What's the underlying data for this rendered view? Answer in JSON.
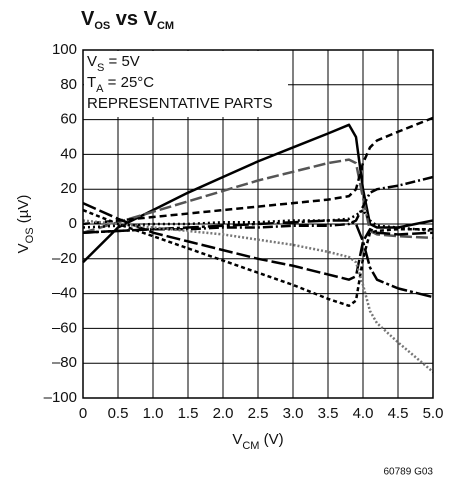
{
  "chart_data": {
    "type": "line",
    "title": [
      "V",
      "OS",
      " vs V",
      "CM"
    ],
    "y_label": [
      "V",
      "OS",
      " (µV)"
    ],
    "x_label": [
      "V",
      "CM",
      " (V)"
    ],
    "annotations": [
      [
        "V",
        "S",
        " = 5V"
      ],
      [
        "T",
        "A",
        " = 25°C"
      ],
      [
        "REPRESENTATIVE PARTS"
      ]
    ],
    "footnote": "60789 G03",
    "grid": true,
    "xlim": [
      0,
      5
    ],
    "ylim": [
      -100,
      100
    ],
    "xticks": [
      0,
      0.5,
      {
        "value": 1,
        "label": "1.0"
      },
      1.5,
      {
        "value": 2,
        "label": "2.0"
      },
      2.5,
      {
        "value": 3,
        "label": "3.0"
      },
      3.5,
      {
        "value": 4,
        "label": "4.0"
      },
      4.5,
      {
        "value": 5,
        "label": "5.0"
      }
    ],
    "yticks": [
      {
        "value": -100,
        "label": "–100"
      },
      {
        "value": -80,
        "label": "–80"
      },
      {
        "value": -60,
        "label": "–60"
      },
      {
        "value": -40,
        "label": "–40"
      },
      {
        "value": -20,
        "label": "–20"
      },
      0,
      20,
      40,
      60,
      80,
      100
    ],
    "x": [
      0,
      0.5,
      1.0,
      1.5,
      2.0,
      2.5,
      3.0,
      3.5,
      3.8,
      3.9,
      4.0,
      4.1,
      4.2,
      4.5,
      5.0
    ],
    "series": [
      {
        "color": "#000000",
        "dash": "none",
        "values": [
          -22,
          -2,
          8,
          18,
          27,
          36,
          44,
          52,
          57,
          50,
          20,
          0,
          -2,
          -2,
          2
        ]
      },
      {
        "color": "#555555",
        "dash": "12,4",
        "values": [
          -5,
          1,
          7,
          13,
          19,
          25,
          30,
          35,
          37,
          35,
          15,
          -4,
          -6,
          -7,
          -8
        ]
      },
      {
        "color": "#000000",
        "dash": "7,4",
        "values": [
          0,
          2,
          4,
          6,
          8,
          10,
          12,
          14,
          16,
          20,
          35,
          44,
          48,
          53,
          61
        ]
      },
      {
        "color": "#000000",
        "dash": "10,3,2,3",
        "values": [
          -5,
          -4,
          -3,
          -3,
          -2,
          -2,
          -1,
          -1,
          0,
          2,
          10,
          18,
          20,
          22,
          27
        ]
      },
      {
        "color": "#000000",
        "dash": "14,4",
        "values": [
          12,
          3,
          -5,
          -10,
          -15,
          -20,
          -24,
          -29,
          -32,
          -30,
          -10,
          -3,
          -5,
          -6,
          -5
        ]
      },
      {
        "color": "#000000",
        "dash": "16,3,3,3",
        "values": [
          -5,
          -4,
          -3,
          -2,
          -1,
          0,
          1,
          2,
          2,
          0,
          -10,
          -25,
          -32,
          -37,
          -42
        ]
      },
      {
        "color": "#000000",
        "dash": "4,3",
        "values": [
          8,
          0,
          -7,
          -14,
          -21,
          -28,
          -35,
          -43,
          -47,
          -44,
          -20,
          -5,
          -4,
          -3,
          -3
        ]
      },
      {
        "color": "#777777",
        "dash": "2,2",
        "values": [
          2,
          0,
          -2,
          -4,
          -6,
          -9,
          -12,
          -16,
          -19,
          -22,
          -35,
          -50,
          -57,
          -68,
          -85
        ]
      },
      {
        "color": "#000000",
        "dash": "2,3",
        "values": [
          -2,
          -1,
          0,
          0,
          1,
          1,
          2,
          2,
          3,
          5,
          8,
          2,
          -1,
          -2,
          -4
        ]
      }
    ]
  }
}
